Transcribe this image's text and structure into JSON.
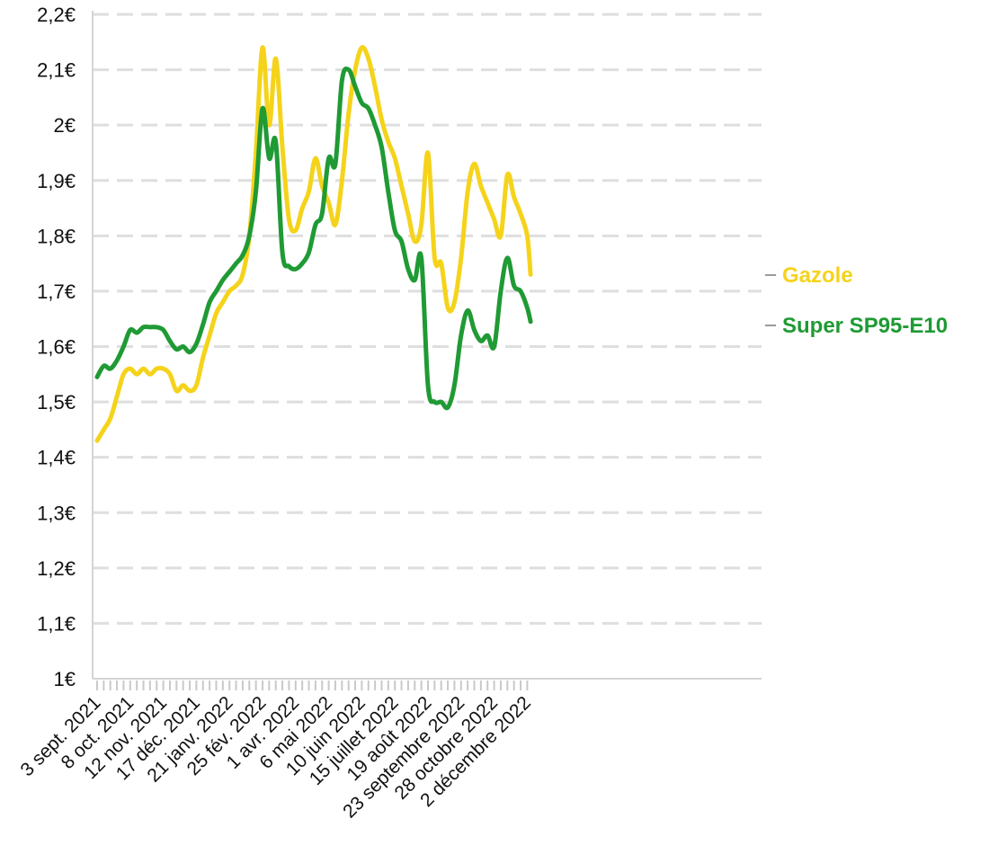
{
  "chart_data": {
    "type": "line",
    "title": "",
    "xlabel": "",
    "ylabel": "",
    "ylim": [
      1.0,
      2.2
    ],
    "y_ticks": [
      {
        "value": 1.0,
        "label": "1€"
      },
      {
        "value": 1.1,
        "label": "1,1€"
      },
      {
        "value": 1.2,
        "label": "1,2€"
      },
      {
        "value": 1.3,
        "label": "1,3€"
      },
      {
        "value": 1.4,
        "label": "1,4€"
      },
      {
        "value": 1.5,
        "label": "1,5€"
      },
      {
        "value": 1.6,
        "label": "1,6€"
      },
      {
        "value": 1.7,
        "label": "1,7€"
      },
      {
        "value": 1.8,
        "label": "1,8€"
      },
      {
        "value": 1.9,
        "label": "1,9€"
      },
      {
        "value": 2.0,
        "label": "2€"
      },
      {
        "value": 2.1,
        "label": "2,1€"
      },
      {
        "value": 2.2,
        "label": "2,2€"
      }
    ],
    "week_count": 66,
    "x_ticks": [
      {
        "week": 0,
        "label": "3 sept. 2021"
      },
      {
        "week": 5,
        "label": "8 oct. 2021"
      },
      {
        "week": 10,
        "label": "12 nov. 2021"
      },
      {
        "week": 15,
        "label": "17 déc. 2021"
      },
      {
        "week": 20,
        "label": "21 janv. 2022"
      },
      {
        "week": 25,
        "label": "25 fév. 2022"
      },
      {
        "week": 30,
        "label": "1 avr. 2022"
      },
      {
        "week": 35,
        "label": "6 mai 2022"
      },
      {
        "week": 40,
        "label": "10 juin 2022"
      },
      {
        "week": 45,
        "label": "15 juillet 2022"
      },
      {
        "week": 50,
        "label": "19 août 2022"
      },
      {
        "week": 55,
        "label": "23 septembre 2022"
      },
      {
        "week": 60,
        "label": "28 octobre 2022"
      },
      {
        "week": 65,
        "label": "2 décembre 2022"
      }
    ],
    "series": [
      {
        "name": "Gazole",
        "label": "Gazole",
        "color": "#f5d31b",
        "points": [
          [
            0,
            1.43
          ],
          [
            1,
            1.45
          ],
          [
            2,
            1.47
          ],
          [
            3,
            1.51
          ],
          [
            4,
            1.55
          ],
          [
            5,
            1.56
          ],
          [
            6,
            1.55
          ],
          [
            7,
            1.56
          ],
          [
            8,
            1.55
          ],
          [
            9,
            1.56
          ],
          [
            10,
            1.56
          ],
          [
            11,
            1.55
          ],
          [
            12,
            1.52
          ],
          [
            13,
            1.53
          ],
          [
            14,
            1.52
          ],
          [
            15,
            1.53
          ],
          [
            16,
            1.58
          ],
          [
            17,
            1.62
          ],
          [
            18,
            1.66
          ],
          [
            19,
            1.68
          ],
          [
            20,
            1.7
          ],
          [
            21,
            1.71
          ],
          [
            22,
            1.73
          ],
          [
            23,
            1.8
          ],
          [
            24,
            1.95
          ],
          [
            25,
            2.14
          ],
          [
            26,
            2.0
          ],
          [
            27,
            2.12
          ],
          [
            28,
            1.96
          ],
          [
            29,
            1.83
          ],
          [
            30,
            1.81
          ],
          [
            31,
            1.85
          ],
          [
            32,
            1.88
          ],
          [
            33,
            1.94
          ],
          [
            34,
            1.89
          ],
          [
            35,
            1.86
          ],
          [
            36,
            1.82
          ],
          [
            37,
            1.9
          ],
          [
            38,
            2.02
          ],
          [
            39,
            2.1
          ],
          [
            40,
            2.14
          ],
          [
            41,
            2.12
          ],
          [
            42,
            2.07
          ],
          [
            43,
            2.01
          ],
          [
            44,
            1.97
          ],
          [
            45,
            1.94
          ],
          [
            46,
            1.89
          ],
          [
            47,
            1.84
          ],
          [
            48,
            1.79
          ],
          [
            49,
            1.82
          ],
          [
            50,
            1.95
          ],
          [
            51,
            1.76
          ],
          [
            52,
            1.75
          ],
          [
            53,
            1.67
          ],
          [
            54,
            1.68
          ],
          [
            55,
            1.76
          ],
          [
            56,
            1.88
          ],
          [
            57,
            1.93
          ],
          [
            58,
            1.89
          ],
          [
            59,
            1.86
          ],
          [
            60,
            1.83
          ],
          [
            61,
            1.8
          ],
          [
            62,
            1.91
          ],
          [
            63,
            1.87
          ],
          [
            64,
            1.84
          ],
          [
            65,
            1.8
          ],
          [
            65.5,
            1.73
          ]
        ]
      },
      {
        "name": "Super SP95-E10",
        "label": "Super SP95-E10",
        "color": "#1f9a34",
        "points": [
          [
            0,
            1.545
          ],
          [
            1,
            1.565
          ],
          [
            2,
            1.56
          ],
          [
            3,
            1.575
          ],
          [
            4,
            1.6
          ],
          [
            5,
            1.63
          ],
          [
            6,
            1.625
          ],
          [
            7,
            1.635
          ],
          [
            8,
            1.635
          ],
          [
            9,
            1.635
          ],
          [
            10,
            1.63
          ],
          [
            11,
            1.61
          ],
          [
            12,
            1.595
          ],
          [
            13,
            1.6
          ],
          [
            14,
            1.59
          ],
          [
            15,
            1.605
          ],
          [
            16,
            1.64
          ],
          [
            17,
            1.68
          ],
          [
            18,
            1.7
          ],
          [
            19,
            1.72
          ],
          [
            20,
            1.735
          ],
          [
            21,
            1.75
          ],
          [
            22,
            1.765
          ],
          [
            23,
            1.8
          ],
          [
            24,
            1.88
          ],
          [
            25,
            2.03
          ],
          [
            26,
            1.94
          ],
          [
            27,
            1.97
          ],
          [
            28,
            1.77
          ],
          [
            29,
            1.745
          ],
          [
            30,
            1.74
          ],
          [
            31,
            1.75
          ],
          [
            32,
            1.77
          ],
          [
            33,
            1.82
          ],
          [
            34,
            1.84
          ],
          [
            35,
            1.94
          ],
          [
            36,
            1.93
          ],
          [
            37,
            2.08
          ],
          [
            38,
            2.1
          ],
          [
            39,
            2.07
          ],
          [
            40,
            2.04
          ],
          [
            41,
            2.03
          ],
          [
            42,
            2.0
          ],
          [
            43,
            1.96
          ],
          [
            44,
            1.88
          ],
          [
            45,
            1.81
          ],
          [
            46,
            1.79
          ],
          [
            47,
            1.74
          ],
          [
            48,
            1.72
          ],
          [
            49,
            1.76
          ],
          [
            50,
            1.53
          ],
          [
            51,
            1.5
          ],
          [
            52,
            1.5
          ],
          [
            53,
            1.49
          ],
          [
            54,
            1.53
          ],
          [
            55,
            1.62
          ],
          [
            56,
            1.665
          ],
          [
            57,
            1.63
          ],
          [
            58,
            1.61
          ],
          [
            59,
            1.62
          ],
          [
            60,
            1.6
          ],
          [
            61,
            1.7
          ],
          [
            62,
            1.76
          ],
          [
            63,
            1.71
          ],
          [
            64,
            1.7
          ],
          [
            65,
            1.67
          ],
          [
            65.5,
            1.645
          ]
        ]
      }
    ],
    "legend_position": "right end of lines"
  }
}
